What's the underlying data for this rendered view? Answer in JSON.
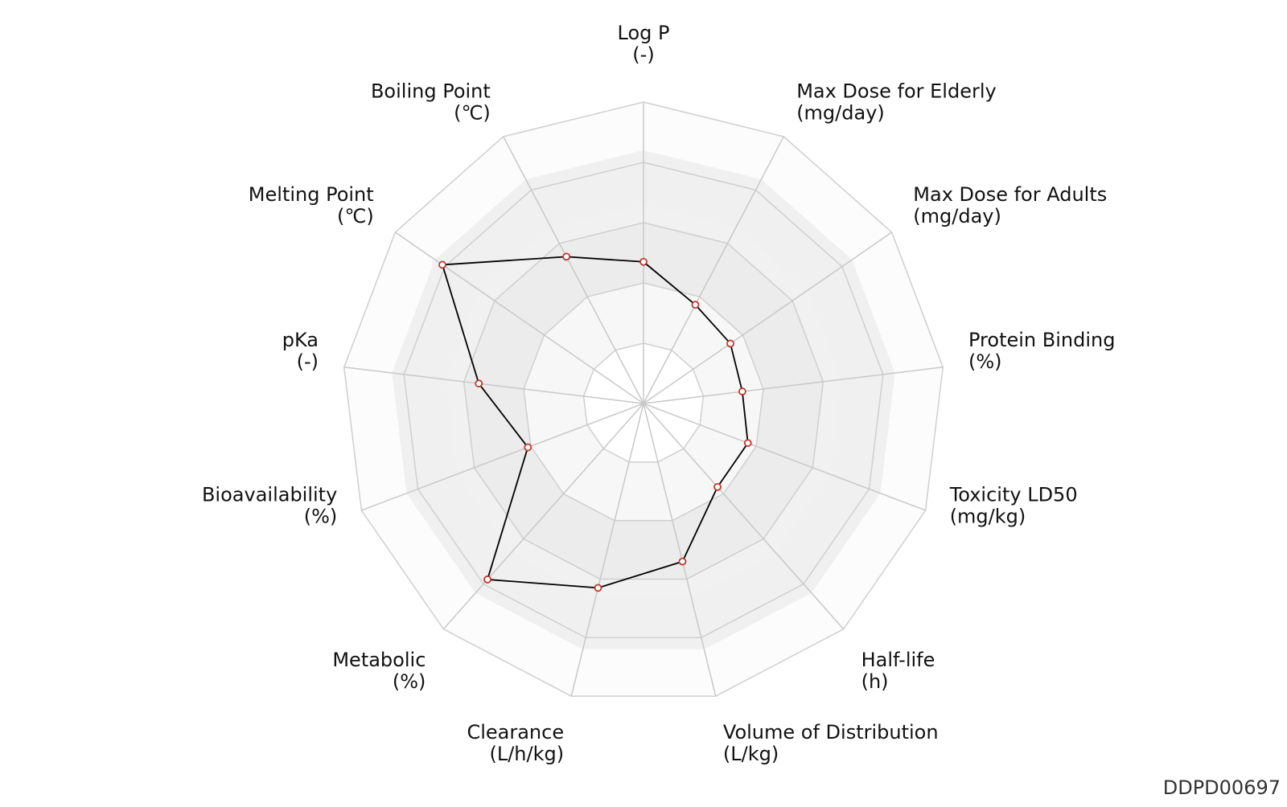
{
  "chart_data": {
    "type": "radar",
    "axes": [
      {
        "name": "Log P",
        "unit": "(-)"
      },
      {
        "name": "Max Dose for Elderly",
        "unit": "(mg/day)"
      },
      {
        "name": "Max Dose for Adults",
        "unit": "(mg/day)"
      },
      {
        "name": "Protein Binding",
        "unit": "(%)"
      },
      {
        "name": "Toxicity LD50",
        "unit": "(mg/kg)"
      },
      {
        "name": "Half-life",
        "unit": "(h)"
      },
      {
        "name": "Volume of Distribution",
        "unit": "(L/kg)"
      },
      {
        "name": "Clearance",
        "unit": "(L/h/kg)"
      },
      {
        "name": "Metabolic",
        "unit": "(%)"
      },
      {
        "name": "Bioavailability",
        "unit": "(%)"
      },
      {
        "name": "pKa",
        "unit": "(-)"
      },
      {
        "name": "Melting Point",
        "unit": "(℃)"
      },
      {
        "name": "Boiling Point",
        "unit": "(℃)"
      }
    ],
    "values": [
      0.47,
      0.37,
      0.35,
      0.33,
      0.37,
      0.37,
      0.54,
      0.63,
      0.78,
      0.41,
      0.55,
      0.81,
      0.55
    ],
    "rlim": [
      0,
      1
    ],
    "ring_count": 5,
    "grid": true,
    "series_color": "#000000",
    "marker_color": "#c0392b"
  },
  "code": "DDPD00697"
}
